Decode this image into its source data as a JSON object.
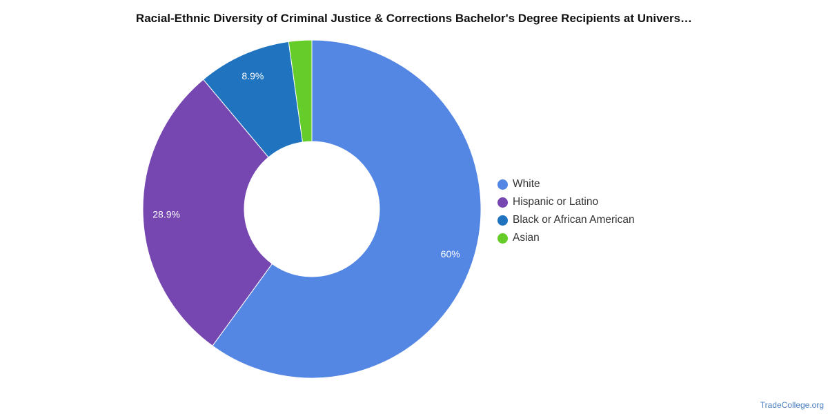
{
  "chart_data": {
    "type": "pie",
    "style": "donut",
    "title": "Racial-Ethnic Diversity of Criminal Justice & Corrections Bachelor's Degree Recipients at Univers…",
    "legend_position": "right",
    "slices": [
      {
        "name": "White",
        "value": 60.0,
        "label": "60%",
        "color": "#5486e3"
      },
      {
        "name": "Hispanic or Latino",
        "value": 28.9,
        "label": "28.9%",
        "color": "#7647b0"
      },
      {
        "name": "Black or African American",
        "value": 8.9,
        "label": "8.9%",
        "color": "#1f73bf"
      },
      {
        "name": "Asian",
        "value": 2.2,
        "label": "",
        "color": "#66cc2a"
      }
    ]
  },
  "watermark": "TradeCollege.org"
}
